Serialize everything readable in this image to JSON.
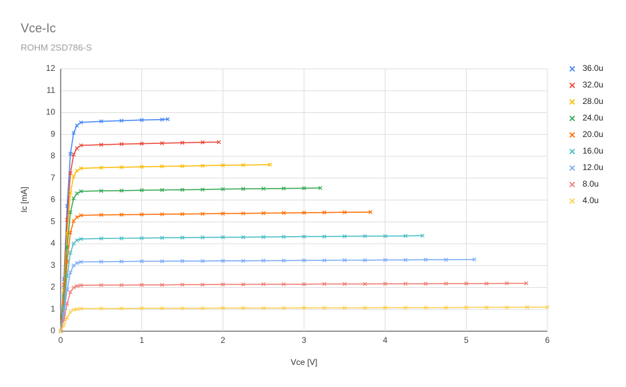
{
  "chart_data": {
    "type": "line",
    "title": "Vce-Ic",
    "subtitle": "ROHM 2SD786-S",
    "x_label": "Vce [V]",
    "y_label": "Ic [mA]",
    "xlim": [
      0,
      6
    ],
    "xticks": [
      0,
      1,
      2,
      3,
      4,
      5,
      6
    ],
    "ylim": [
      0,
      12
    ],
    "yticks": [
      0,
      1,
      2,
      3,
      4,
      5,
      6,
      7,
      8,
      9,
      10,
      11,
      12
    ],
    "grid": true,
    "legend": "right",
    "marker": "x",
    "series": [
      {
        "name": "36.0u",
        "color": "#4285f4",
        "x": [
          0,
          0.04,
          0.08,
          0.12,
          0.16,
          0.2,
          0.25,
          0.5,
          0.75,
          1.0,
          1.25,
          1.32
        ],
        "values": [
          0,
          2.39,
          5.73,
          8.12,
          9.07,
          9.41,
          9.55,
          9.6,
          9.63,
          9.66,
          9.68,
          9.7
        ]
      },
      {
        "name": "32.0u",
        "color": "#ea4335",
        "x": [
          0,
          0.04,
          0.08,
          0.12,
          0.16,
          0.2,
          0.25,
          0.5,
          0.75,
          1.0,
          1.25,
          1.5,
          1.75,
          1.95
        ],
        "values": [
          0,
          2.13,
          5.1,
          7.23,
          8.08,
          8.37,
          8.5,
          8.53,
          8.56,
          8.58,
          8.6,
          8.62,
          8.64,
          8.65
        ]
      },
      {
        "name": "28.0u",
        "color": "#fbbc04",
        "x": [
          0,
          0.04,
          0.08,
          0.12,
          0.16,
          0.2,
          0.25,
          0.5,
          0.75,
          1.0,
          1.25,
          1.5,
          1.75,
          2.0,
          2.25,
          2.58
        ],
        "values": [
          0,
          1.86,
          4.47,
          6.33,
          7.08,
          7.34,
          7.45,
          7.48,
          7.5,
          7.52,
          7.54,
          7.55,
          7.57,
          7.59,
          7.6,
          7.62
        ]
      },
      {
        "name": "24.0u",
        "color": "#34a853",
        "x": [
          0,
          0.04,
          0.08,
          0.12,
          0.16,
          0.2,
          0.25,
          0.5,
          0.75,
          1.0,
          1.25,
          1.5,
          1.75,
          2.0,
          2.25,
          2.5,
          2.75,
          3.0,
          3.2
        ],
        "values": [
          0,
          1.6,
          3.84,
          5.44,
          6.08,
          6.3,
          6.4,
          6.42,
          6.43,
          6.45,
          6.46,
          6.47,
          6.48,
          6.5,
          6.51,
          6.52,
          6.53,
          6.54,
          6.55
        ]
      },
      {
        "name": "20.0u",
        "color": "#ff6d01",
        "x": [
          0,
          0.04,
          0.08,
          0.12,
          0.16,
          0.2,
          0.25,
          0.5,
          0.75,
          1.0,
          1.25,
          1.5,
          1.75,
          2.0,
          2.25,
          2.5,
          2.75,
          3.0,
          3.25,
          3.5,
          3.82
        ],
        "values": [
          0,
          1.33,
          3.18,
          4.51,
          5.04,
          5.22,
          5.3,
          5.32,
          5.33,
          5.34,
          5.35,
          5.36,
          5.37,
          5.38,
          5.39,
          5.4,
          5.41,
          5.42,
          5.43,
          5.44,
          5.45
        ]
      },
      {
        "name": "16.0u",
        "color": "#46bdc6",
        "x": [
          0,
          0.04,
          0.08,
          0.12,
          0.16,
          0.2,
          0.25,
          0.5,
          0.75,
          1.0,
          1.25,
          1.5,
          1.75,
          2.0,
          2.25,
          2.5,
          2.75,
          3.0,
          3.25,
          3.5,
          3.75,
          4.0,
          4.25,
          4.46
        ],
        "values": [
          0,
          1.06,
          2.53,
          3.59,
          4.01,
          4.16,
          4.22,
          4.24,
          4.25,
          4.26,
          4.27,
          4.28,
          4.29,
          4.3,
          4.3,
          4.31,
          4.32,
          4.33,
          4.33,
          4.34,
          4.35,
          4.35,
          4.36,
          4.37
        ]
      },
      {
        "name": "12.0u",
        "color": "#7baaf7",
        "x": [
          0,
          0.04,
          0.08,
          0.12,
          0.16,
          0.2,
          0.25,
          0.5,
          0.75,
          1.0,
          1.25,
          1.5,
          1.75,
          2.0,
          2.25,
          2.5,
          2.75,
          3.0,
          3.25,
          3.5,
          3.75,
          4.0,
          4.25,
          4.5,
          4.75,
          5.1
        ],
        "values": [
          0,
          0.79,
          1.9,
          2.69,
          3.01,
          3.12,
          3.17,
          3.18,
          3.19,
          3.2,
          3.2,
          3.21,
          3.21,
          3.22,
          3.22,
          3.23,
          3.23,
          3.24,
          3.24,
          3.25,
          3.25,
          3.26,
          3.26,
          3.27,
          3.27,
          3.28
        ]
      },
      {
        "name": "8.0u",
        "color": "#f07b72",
        "x": [
          0,
          0.04,
          0.08,
          0.12,
          0.16,
          0.2,
          0.25,
          0.5,
          0.75,
          1.0,
          1.25,
          1.5,
          1.75,
          2.0,
          2.25,
          2.5,
          2.75,
          3.0,
          3.25,
          3.5,
          3.75,
          4.0,
          4.25,
          4.5,
          4.75,
          5.0,
          5.25,
          5.5,
          5.74
        ],
        "values": [
          0,
          0.53,
          1.26,
          1.79,
          2.0,
          2.07,
          2.1,
          2.11,
          2.11,
          2.12,
          2.12,
          2.13,
          2.13,
          2.14,
          2.14,
          2.15,
          2.15,
          2.15,
          2.16,
          2.16,
          2.16,
          2.17,
          2.17,
          2.17,
          2.18,
          2.18,
          2.18,
          2.19,
          2.19
        ]
      },
      {
        "name": "4.0u",
        "color": "#fcd04f",
        "x": [
          0,
          0.04,
          0.08,
          0.12,
          0.16,
          0.2,
          0.25,
          0.5,
          0.75,
          1.0,
          1.25,
          1.5,
          1.75,
          2.0,
          2.25,
          2.5,
          2.75,
          3.0,
          3.25,
          3.5,
          3.75,
          4.0,
          4.25,
          4.5,
          4.75,
          5.0,
          5.25,
          5.5,
          5.75,
          6.0
        ],
        "values": [
          0,
          0.26,
          0.62,
          0.88,
          0.98,
          1.01,
          1.03,
          1.04,
          1.04,
          1.05,
          1.05,
          1.05,
          1.05,
          1.06,
          1.06,
          1.06,
          1.06,
          1.07,
          1.07,
          1.07,
          1.07,
          1.08,
          1.08,
          1.08,
          1.08,
          1.09,
          1.09,
          1.09,
          1.1,
          1.1
        ]
      }
    ]
  }
}
